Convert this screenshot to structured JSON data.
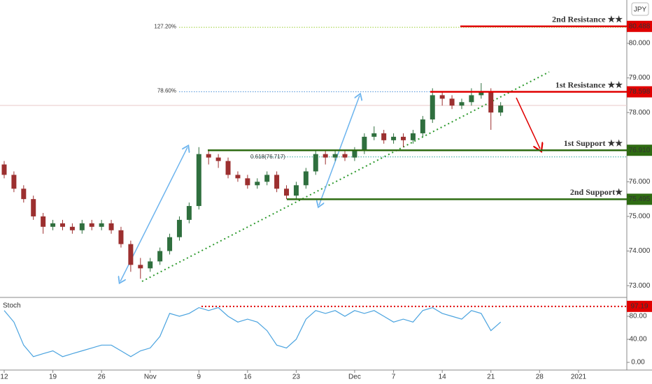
{
  "chart_data": {
    "type": "candlestick",
    "currency": "JPY",
    "indicator": "Stoch",
    "xlim": [
      -0.43,
      63.96
    ],
    "xticks": [
      {
        "value": 0,
        "label": "12"
      },
      {
        "value": 5,
        "label": "19"
      },
      {
        "value": 10,
        "label": "26"
      },
      {
        "value": 15,
        "label": "Nov"
      },
      {
        "value": 20,
        "label": "9"
      },
      {
        "value": 25,
        "label": "16"
      },
      {
        "value": 30,
        "label": "23"
      },
      {
        "value": 36,
        "label": "Dec"
      },
      {
        "value": 40,
        "label": "7"
      },
      {
        "value": 45,
        "label": "14"
      },
      {
        "value": 50,
        "label": "21"
      },
      {
        "value": 55,
        "label": "28"
      },
      {
        "value": 59,
        "label": "2021"
      }
    ],
    "ylim": [
      72.68,
      81.25
    ],
    "yticks": [
      {
        "value": 73,
        "label": "73.000"
      },
      {
        "value": 74,
        "label": "74.000"
      },
      {
        "value": 75,
        "label": "75.000"
      },
      {
        "value": 76,
        "label": "76.000"
      },
      {
        "value": 78,
        "label": "78.000"
      },
      {
        "value": 79,
        "label": "79.000"
      },
      {
        "value": 80,
        "label": "80.000"
      }
    ],
    "up_color": "#2f6f3e",
    "down_color": "#9c2f2f",
    "open": [
      76.5,
      76.2,
      75.8,
      75.5,
      75.0,
      74.7,
      74.8,
      74.7,
      74.6,
      74.8,
      74.7,
      74.8,
      74.6,
      74.2,
      73.6,
      73.5,
      73.7,
      74.0,
      74.4,
      74.9,
      75.3,
      76.8,
      76.7,
      76.6,
      76.2,
      76.1,
      75.9,
      76.0,
      76.2,
      75.8,
      75.6,
      75.9,
      76.3,
      76.8,
      76.7,
      76.8,
      76.7,
      76.9,
      77.3,
      77.4,
      77.2,
      77.3,
      77.2,
      77.4,
      77.8,
      78.5,
      78.4,
      78.2,
      78.3,
      78.5,
      78.6,
      78.0
    ],
    "high": [
      76.6,
      76.3,
      75.9,
      75.6,
      75.1,
      74.9,
      74.9,
      74.8,
      74.9,
      74.9,
      74.9,
      74.9,
      74.7,
      74.3,
      73.8,
      73.8,
      74.1,
      74.5,
      75.0,
      75.4,
      77.0,
      76.9,
      76.8,
      76.7,
      76.3,
      76.2,
      76.1,
      76.3,
      76.3,
      75.9,
      76.0,
      76.4,
      76.9,
      76.9,
      76.9,
      76.9,
      77.0,
      77.4,
      77.6,
      77.5,
      77.4,
      77.4,
      77.5,
      77.9,
      78.7,
      78.6,
      78.5,
      78.4,
      78.7,
      78.85,
      78.7,
      78.3
    ],
    "low": [
      76.1,
      75.7,
      75.4,
      74.9,
      74.5,
      74.6,
      74.6,
      74.5,
      74.5,
      74.6,
      74.6,
      74.5,
      74.1,
      73.4,
      73.2,
      73.4,
      73.6,
      73.9,
      74.3,
      74.8,
      75.2,
      76.5,
      76.4,
      76.1,
      76.0,
      75.8,
      75.8,
      75.9,
      75.7,
      75.5,
      75.5,
      75.8,
      76.2,
      76.5,
      76.6,
      76.6,
      76.6,
      76.8,
      77.2,
      77.1,
      77.1,
      77.0,
      77.1,
      77.3,
      77.7,
      78.2,
      78.1,
      78.1,
      78.2,
      78.4,
      77.5,
      77.9
    ],
    "close": [
      76.2,
      75.8,
      75.5,
      75.0,
      74.7,
      74.8,
      74.7,
      74.6,
      74.8,
      74.7,
      74.8,
      74.6,
      74.2,
      73.6,
      73.5,
      73.7,
      74.0,
      74.4,
      74.9,
      75.3,
      76.8,
      76.7,
      76.6,
      76.2,
      76.1,
      75.9,
      76.0,
      76.2,
      75.8,
      75.6,
      75.9,
      76.3,
      76.8,
      76.7,
      76.8,
      76.7,
      76.9,
      77.3,
      77.4,
      77.2,
      77.3,
      77.2,
      77.4,
      77.8,
      78.5,
      78.4,
      78.2,
      78.3,
      78.5,
      78.6,
      78.0,
      78.2
    ],
    "levels": [
      {
        "name": "2nd Resistance ★★",
        "value": 80.488,
        "color": "#e00000"
      },
      {
        "name": "1st Resistance ★★",
        "value": 78.598,
        "color": "#e00000"
      },
      {
        "name": "1st Support ★★",
        "value": 76.91,
        "value_label": "76.910",
        "color": "#2e6b12"
      },
      {
        "name": "2nd Support★",
        "value": 75.495,
        "color": "#2e6b12"
      }
    ],
    "fib": [
      {
        "label": "127.20%",
        "value": 80.46,
        "color": "#9acd32"
      },
      {
        "label": "78.60%",
        "value": 78.6,
        "color": "#4a90d9"
      },
      {
        "label": "0.618(76.717)",
        "value": 76.717,
        "color": "#26a69a"
      }
    ],
    "stoch": {
      "color": "#4aa3df",
      "values": [
        90,
        70,
        30,
        10,
        15,
        20,
        10,
        15,
        20,
        25,
        30,
        30,
        20,
        10,
        20,
        25,
        45,
        85,
        80,
        85,
        95,
        90,
        95,
        80,
        70,
        75,
        70,
        55,
        30,
        25,
        40,
        75,
        90,
        85,
        90,
        80,
        90,
        85,
        90,
        80,
        70,
        75,
        70,
        90,
        95,
        85,
        80,
        75,
        90,
        85,
        55,
        70
      ],
      "ylim": [
        -13.3,
        110.3
      ],
      "yticks": [
        {
          "value": 0,
          "label": "0.00"
        },
        {
          "value": 40,
          "label": "40.00"
        },
        {
          "value": 80,
          "label": "80.00"
        }
      ],
      "level": 97.19,
      "level_color": "#e00000"
    }
  }
}
